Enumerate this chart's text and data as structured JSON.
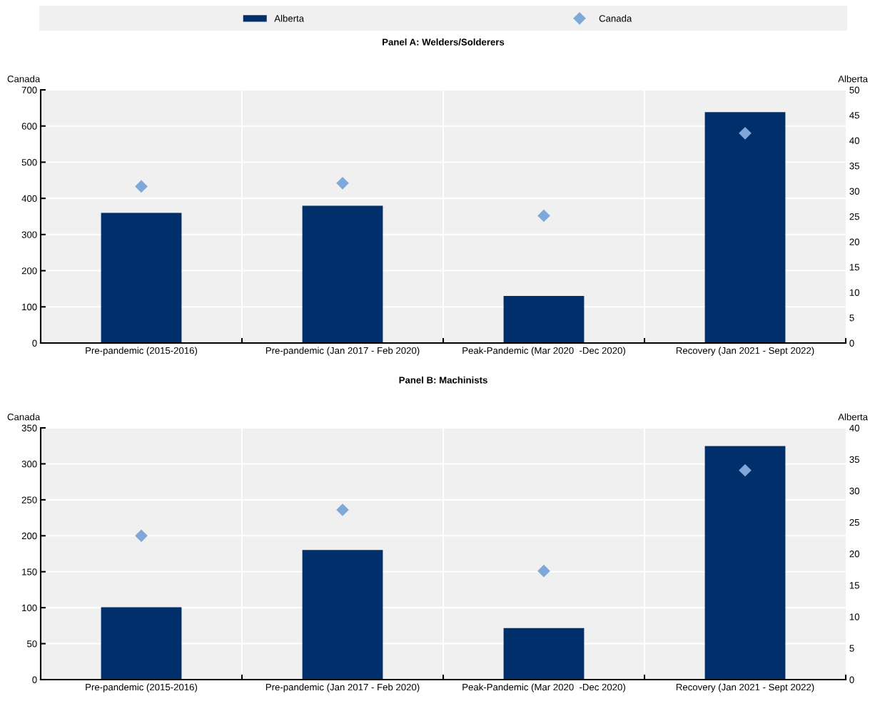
{
  "chart_data": [
    {
      "type": "bar",
      "title": "Panel A: Welders/Solderers",
      "ylabel": "Canada",
      "y2label": "Alberta",
      "categories": [
        "Pre-pandemic (2015-2016)",
        "Pre-pandemic (Jan 2017 - Feb 2020)",
        "Peak-Pandemic (Mar 2020  -Dec 2020)",
        "Recovery (Jan 2021 - Sept 2022)"
      ],
      "series": [
        {
          "name": "Alberta",
          "axis": "y2",
          "color": "#002f6c",
          "values": [
            25.7,
            27.1,
            9.3,
            45.6
          ]
        },
        {
          "name": "Canada",
          "type": "scatter",
          "axis": "y",
          "color": "#7fa8d9",
          "marker": "diamond",
          "values": [
            433,
            442,
            352,
            580
          ]
        }
      ],
      "ylim": [
        0,
        700
      ],
      "yticks": [
        0,
        100,
        200,
        300,
        400,
        500,
        600,
        700
      ],
      "y2lim": [
        0,
        50
      ],
      "y2ticks": [
        0,
        5,
        10,
        15,
        20,
        25,
        30,
        35,
        40,
        45,
        50
      ],
      "grid": "y",
      "legend": "top"
    },
    {
      "type": "bar",
      "title": "Panel B: Machinists",
      "ylabel": "Canada",
      "y2label": "Alberta",
      "categories": [
        "Pre-pandemic (2015-2016)",
        "Pre-pandemic (Jan 2017 - Feb 2020)",
        "Peak-Pandemic (Mar 2020  -Dec 2020)",
        "Recovery (Jan 2021 - Sept 2022)"
      ],
      "series": [
        {
          "axis": "y2",
          "color": "#002f6c",
          "values": [
            11.5,
            20.6,
            8.2,
            37.1
          ]
        },
        {
          "type": "scatter",
          "axis": "y",
          "color": "#7fa8d9",
          "marker": "diamond",
          "values": [
            200,
            236,
            151,
            291
          ]
        }
      ],
      "ylim": [
        0,
        350
      ],
      "yticks": [
        0,
        50,
        100,
        150,
        200,
        250,
        300,
        350
      ],
      "y2lim": [
        0,
        40
      ],
      "y2ticks": [
        0,
        5,
        10,
        15,
        20,
        25,
        30,
        35,
        40
      ],
      "grid": "y"
    }
  ]
}
